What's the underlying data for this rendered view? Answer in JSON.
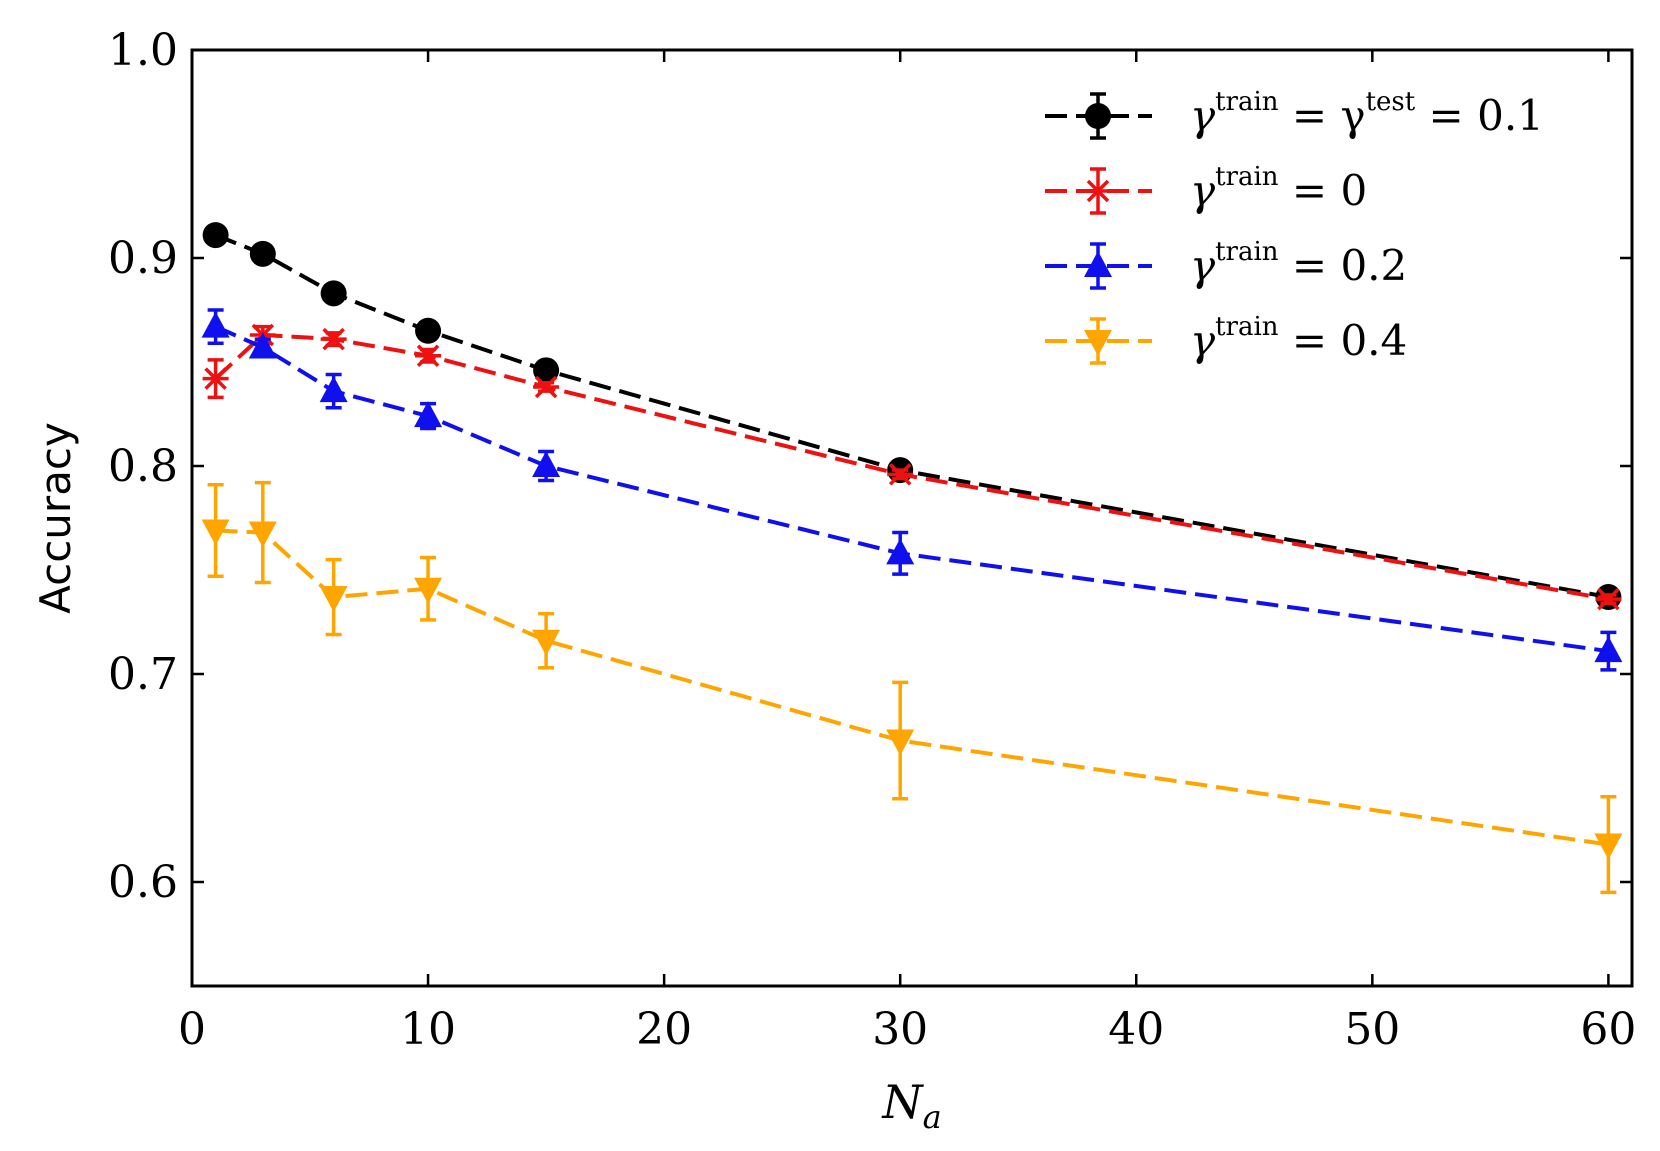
{
  "chart_data": {
    "type": "line",
    "xlabel": "N",
    "xlabel_sub": "a",
    "ylabel": "Accuracy",
    "xlim": [
      0,
      61
    ],
    "ylim": [
      0.55,
      1.0
    ],
    "xticks": [
      0,
      10,
      20,
      30,
      40,
      50,
      60
    ],
    "xtick_labels": [
      "0",
      "10",
      "20",
      "30",
      "40",
      "50",
      "60"
    ],
    "yticks": [
      0.6,
      0.7,
      0.8,
      0.9,
      1.0
    ],
    "ytick_labels": [
      "0.6",
      "0.7",
      "0.8",
      "0.9",
      "1.0"
    ],
    "grid": false,
    "legend_position": "top-right",
    "x": [
      1,
      3,
      6,
      10,
      15,
      30,
      60
    ],
    "series": [
      {
        "name": "γ^train = γ^test = 0.1",
        "legend": {
          "base": "γ",
          "sup": "train",
          "mid": " = γ",
          "sup2": "test",
          "tail": " = 0.1"
        },
        "color": "#000000",
        "marker": "circle",
        "values": [
          0.911,
          0.902,
          0.883,
          0.865,
          0.846,
          0.798,
          0.737
        ],
        "errors": [
          0.002,
          0.002,
          0.002,
          0.002,
          0.002,
          0.002,
          0.002
        ]
      },
      {
        "name": "γ^train = 0",
        "legend": {
          "base": "γ",
          "sup": "train",
          "mid": "",
          "sup2": "",
          "tail": " = 0"
        },
        "color": "#ee1111",
        "marker": "x",
        "values": [
          0.842,
          0.863,
          0.861,
          0.853,
          0.838,
          0.796,
          0.736
        ],
        "errors": [
          0.009,
          0.004,
          0.003,
          0.003,
          0.002,
          0.002,
          0.002
        ]
      },
      {
        "name": "γ^train = 0.2",
        "legend": {
          "base": "γ",
          "sup": "train",
          "mid": "",
          "sup2": "",
          "tail": " = 0.2"
        },
        "color": "#1010ee",
        "marker": "triangle-up",
        "values": [
          0.867,
          0.857,
          0.836,
          0.824,
          0.8,
          0.758,
          0.711
        ],
        "errors": [
          0.008,
          0.004,
          0.008,
          0.006,
          0.007,
          0.01,
          0.009
        ]
      },
      {
        "name": "γ^train = 0.4",
        "legend": {
          "base": "γ",
          "sup": "train",
          "mid": "",
          "sup2": "",
          "tail": " = 0.4"
        },
        "color": "#ffa500",
        "marker": "triangle-down",
        "values": [
          0.769,
          0.768,
          0.737,
          0.741,
          0.716,
          0.668,
          0.618
        ],
        "errors": [
          0.022,
          0.024,
          0.018,
          0.015,
          0.013,
          0.028,
          0.023
        ]
      }
    ]
  }
}
